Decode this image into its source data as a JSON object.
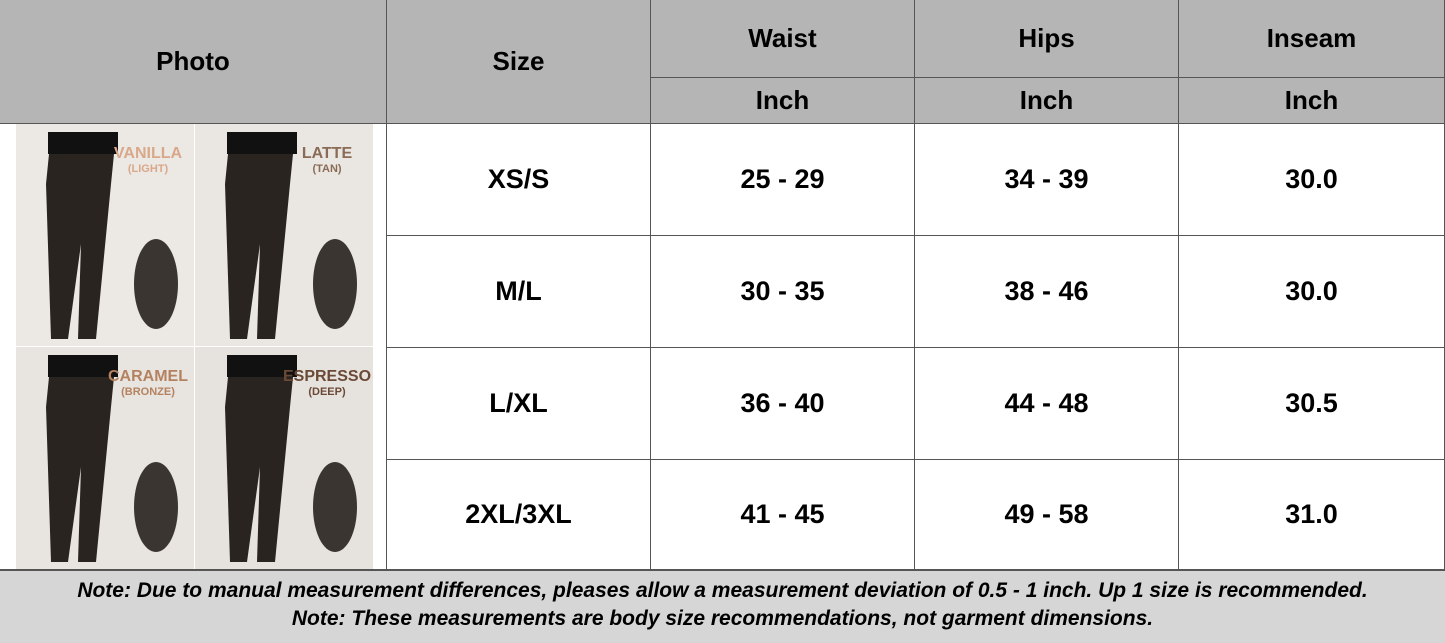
{
  "table": {
    "headers": [
      "Photo",
      "Size",
      "Waist",
      "Hips",
      "Inseam"
    ],
    "units": [
      "Inch",
      "Inch",
      "Inch"
    ],
    "rows": [
      [
        "XS/S",
        "25 - 29",
        "34 - 39",
        "30.0"
      ],
      [
        "M/L",
        "30 - 35",
        "38 - 46",
        "30.0"
      ],
      [
        "L/XL",
        "36 - 40",
        "44 - 48",
        "30.5"
      ],
      [
        "2XL/3XL",
        "41 - 45",
        "49 - 58",
        "31.0"
      ]
    ]
  },
  "photo": {
    "labels": [
      {
        "name": "VANILLA",
        "shade": "(LIGHT)"
      },
      {
        "name": "LATTE",
        "shade": "(TAN)"
      },
      {
        "name": "CARAMEL",
        "shade": "(BRONZE)"
      },
      {
        "name": "ESPRESSO",
        "shade": "(DEEP)"
      }
    ]
  },
  "notes": [
    "Note: Due to manual measurement differences, pleases allow a measurement deviation of 0.5 - 1 inch. Up 1 size is recommended.",
    "Note: These measurements are body size recommendations, not garment dimensions."
  ]
}
